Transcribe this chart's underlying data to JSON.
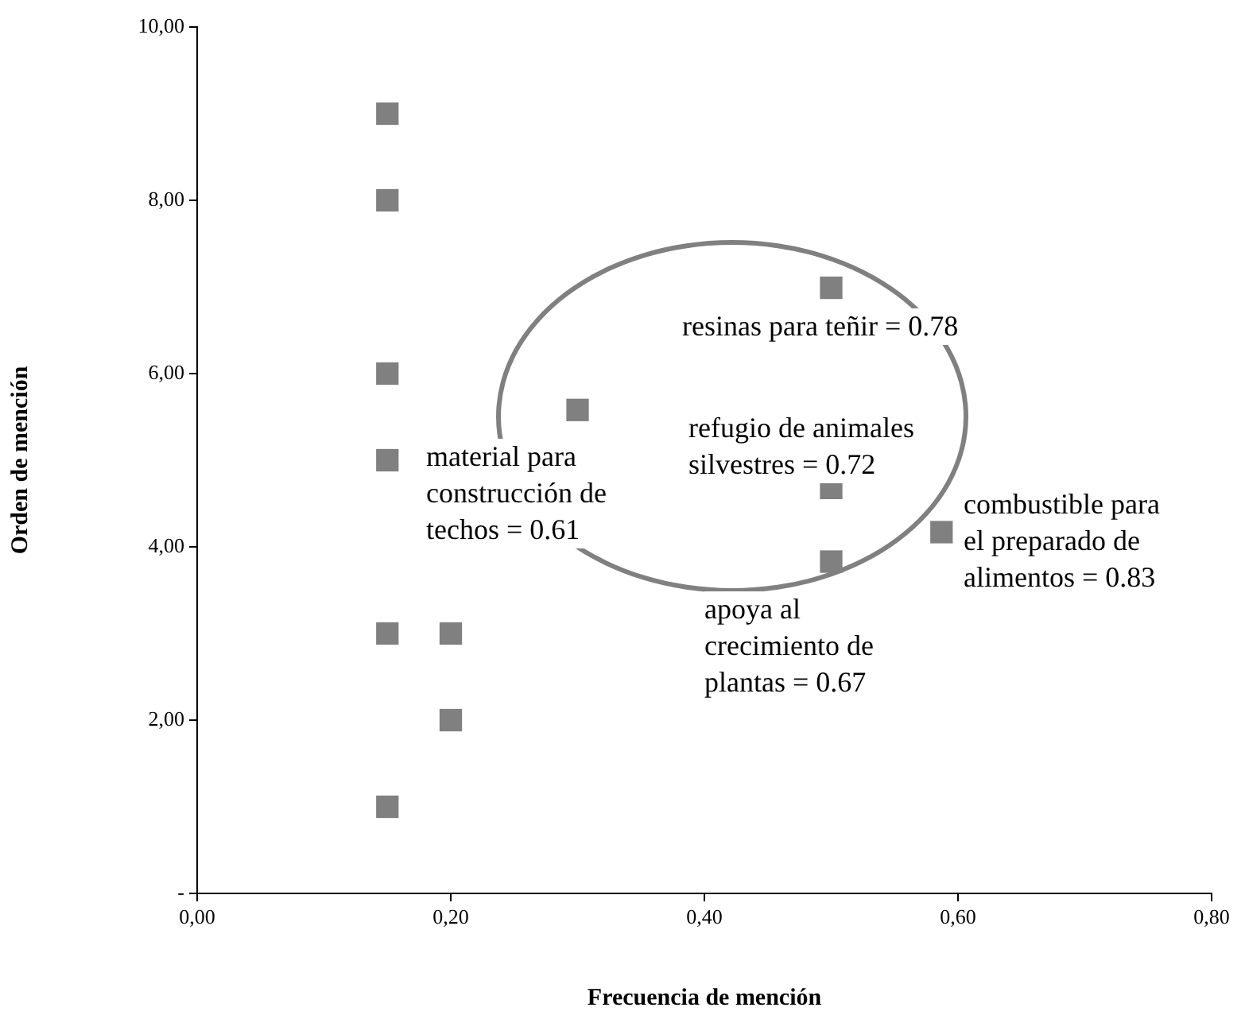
{
  "chart_data": {
    "type": "scatter",
    "xlabel": "Frecuencia de mención",
    "ylabel": "Orden de mención",
    "x": [
      0.15,
      0.15,
      0.15,
      0.15,
      0.15,
      0.15,
      0.2,
      0.2,
      0.3,
      0.5,
      0.5,
      0.5,
      0.587
    ],
    "series": [
      {
        "color": "#808080",
        "values": [
          9,
          8,
          6,
          5,
          3,
          1,
          3,
          2,
          5.58,
          6.99,
          4.68,
          3.83,
          4.17
        ]
      }
    ],
    "marker": "square",
    "grid": false,
    "legend": false,
    "xlim": [
      0,
      0.8
    ],
    "xticks": [
      {
        "value": 0,
        "label": "0,00"
      },
      {
        "value": 0.2,
        "label": "0,20"
      },
      {
        "value": 0.4,
        "label": "0,40"
      },
      {
        "value": 0.6,
        "label": "0,60"
      },
      {
        "value": 0.8,
        "label": "0,80"
      }
    ],
    "ylim": [
      0,
      10
    ],
    "yticks": [
      {
        "value": 0,
        "label": "-"
      },
      {
        "value": 2,
        "label": "2,00"
      },
      {
        "value": 4,
        "label": "4,00"
      },
      {
        "value": 6,
        "label": "6,00"
      },
      {
        "value": 8,
        "label": "8,00"
      },
      {
        "value": 10,
        "label": "10,00"
      }
    ],
    "annotations": [
      "material para\nconstrucción de\ntechos = 0.61",
      "resinas para teñir = 0.78",
      "refugio de animales\nsilvestres = 0.72",
      "combustible para\nel preparado de\nalimentos = 0.83",
      "apoya al\ncrecimiento de\nplantas = 0.67"
    ]
  }
}
